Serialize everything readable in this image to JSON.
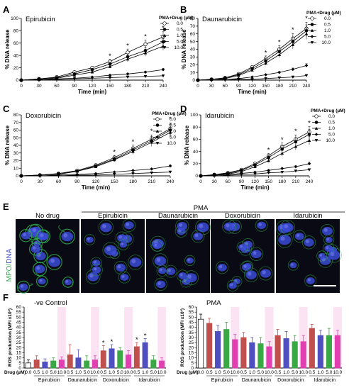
{
  "panel_labels": {
    "A": "A",
    "B": "B",
    "C": "C",
    "D": "D",
    "E": "E",
    "F": "F"
  },
  "chart_data": [
    {
      "id": "A",
      "type": "line",
      "title": "Epirubicin",
      "xlabel": "Time (min)",
      "ylabel": "% DNA release",
      "x": [
        0,
        30,
        60,
        90,
        120,
        150,
        180,
        210,
        240
      ],
      "xlim": [
        0,
        240
      ],
      "ylim": [
        0,
        100
      ],
      "yticks": [
        0,
        20,
        40,
        60,
        80,
        100
      ],
      "legend_title": "PMA+Drug (µM)",
      "series": [
        {
          "name": "0.0",
          "marker": "circle-open",
          "values": [
            0,
            2,
            5,
            13,
            20,
            30,
            45,
            58,
            70
          ]
        },
        {
          "name": "0.5",
          "marker": "circle-filled",
          "values": [
            0,
            2,
            4,
            10,
            17,
            26,
            38,
            48,
            62
          ]
        },
        {
          "name": "1.0",
          "marker": "triangle",
          "values": [
            0,
            1,
            3,
            8,
            13,
            22,
            34,
            44,
            55
          ]
        },
        {
          "name": "5.0",
          "marker": "diamond",
          "values": [
            0,
            1,
            2,
            3,
            5,
            8,
            10,
            13,
            17
          ]
        },
        {
          "name": "10.0",
          "marker": "triangle-down",
          "values": [
            0,
            0,
            1,
            2,
            3,
            4,
            5,
            6,
            7
          ]
        }
      ],
      "significance": [
        150,
        180,
        210,
        240
      ]
    },
    {
      "id": "B",
      "type": "line",
      "title": "Daunarubicin",
      "xlabel": "Time (min)",
      "ylabel": "% DNA release",
      "x": [
        0,
        30,
        60,
        90,
        120,
        150,
        180,
        210,
        240
      ],
      "xlim": [
        0,
        240
      ],
      "ylim": [
        0,
        80
      ],
      "yticks": [
        0,
        10,
        20,
        30,
        40,
        50,
        60,
        70,
        80
      ],
      "legend_title": "PMA+Drug (µM)",
      "series": [
        {
          "name": "0.0",
          "marker": "circle-open",
          "values": [
            0,
            1,
            3,
            8,
            17,
            28,
            40,
            54,
            67
          ]
        },
        {
          "name": "0.5",
          "marker": "circle-filled",
          "values": [
            0,
            1,
            3,
            7,
            15,
            25,
            37,
            50,
            64
          ]
        },
        {
          "name": "1.0",
          "marker": "triangle",
          "values": [
            0,
            1,
            2,
            6,
            13,
            22,
            33,
            46,
            60
          ]
        },
        {
          "name": "5.0",
          "marker": "diamond",
          "values": [
            0,
            0,
            1,
            2,
            4,
            7,
            10,
            14,
            19
          ]
        },
        {
          "name": "10.0",
          "marker": "triangle-down",
          "values": [
            0,
            0,
            0,
            1,
            1,
            2,
            3,
            4,
            6
          ]
        }
      ],
      "significance": [
        150,
        180,
        210,
        240
      ]
    },
    {
      "id": "C",
      "type": "line",
      "title": "Doxorubicin",
      "xlabel": "Time (min)",
      "ylabel": "% DNA release",
      "x": [
        0,
        30,
        60,
        90,
        120,
        150,
        180,
        210,
        240
      ],
      "xlim": [
        0,
        240
      ],
      "ylim": [
        0,
        80
      ],
      "yticks": [
        0,
        10,
        20,
        30,
        40,
        50,
        60,
        70,
        80
      ],
      "legend_title": "PMA+Drug (µM)",
      "series": [
        {
          "name": "0.0",
          "marker": "circle-open",
          "values": [
            0,
            1,
            3,
            7,
            14,
            24,
            36,
            48,
            62
          ]
        },
        {
          "name": "0.5",
          "marker": "circle-filled",
          "values": [
            0,
            1,
            3,
            6,
            13,
            22,
            34,
            46,
            60
          ]
        },
        {
          "name": "1.0",
          "marker": "triangle",
          "values": [
            0,
            1,
            2,
            6,
            12,
            21,
            32,
            44,
            57
          ]
        },
        {
          "name": "5.0",
          "marker": "diamond",
          "values": [
            0,
            0,
            1,
            2,
            3,
            5,
            7,
            9,
            13
          ]
        },
        {
          "name": "10.0",
          "marker": "triangle-down",
          "values": [
            0,
            0,
            0,
            1,
            1,
            2,
            3,
            4,
            5
          ]
        }
      ],
      "significance": [
        150,
        180,
        210,
        240
      ]
    },
    {
      "id": "D",
      "type": "line",
      "title": "Idarubicin",
      "xlabel": "Time (min)",
      "ylabel": "% DNA release",
      "x": [
        0,
        30,
        60,
        90,
        120,
        150,
        180,
        210,
        240
      ],
      "xlim": [
        0,
        240
      ],
      "ylim": [
        0,
        100
      ],
      "yticks": [
        0,
        20,
        40,
        60,
        80,
        100
      ],
      "legend_title": "PMA+Drug (µM)",
      "series": [
        {
          "name": "0.0",
          "marker": "circle-open",
          "values": [
            0,
            2,
            5,
            10,
            20,
            33,
            48,
            60,
            72
          ]
        },
        {
          "name": "0.5",
          "marker": "circle-filled",
          "values": [
            0,
            2,
            4,
            9,
            18,
            30,
            44,
            56,
            68
          ]
        },
        {
          "name": "1.0",
          "marker": "triangle",
          "values": [
            0,
            1,
            3,
            7,
            15,
            25,
            37,
            48,
            58
          ]
        },
        {
          "name": "5.0",
          "marker": "diamond",
          "values": [
            0,
            1,
            2,
            4,
            6,
            9,
            12,
            15,
            20
          ]
        },
        {
          "name": "10.0",
          "marker": "triangle-down",
          "values": [
            0,
            0,
            1,
            2,
            3,
            5,
            6,
            8,
            10
          ]
        }
      ],
      "significance": [
        150,
        180,
        210,
        240
      ]
    },
    {
      "id": "F-left",
      "type": "bar",
      "title": "-ve Control",
      "ylabel": "ROS production (MFI x10³)",
      "ylim": [
        0,
        60
      ],
      "yticks": [
        0,
        5,
        10,
        15,
        20,
        25,
        30,
        35,
        40,
        45,
        50,
        55,
        60
      ],
      "xlabel_prefix": "Drug (µM)",
      "concentrations": [
        "0.0",
        "0.5",
        "1.0",
        "5.0",
        "10.0",
        "0.5",
        "1.0",
        "5.0",
        "10.0",
        "0.5",
        "1.0",
        "5.0",
        "10.0",
        "0.5",
        "1.0",
        "5.0",
        "10.0"
      ],
      "groups": [
        "Epirubicin",
        "Daunarubicin",
        "Doxorubicin",
        "Idarubicin"
      ],
      "values": [
        5,
        8,
        6,
        7,
        8,
        13,
        10,
        7,
        8,
        17,
        19,
        17,
        13,
        21,
        25,
        8,
        7
      ],
      "errors": [
        3,
        4,
        3,
        3,
        3,
        10,
        8,
        5,
        4,
        5,
        4,
        3,
        4,
        4,
        4,
        4,
        3
      ],
      "colors": [
        "#ffffff",
        "#c0504d",
        "#4f4fbf",
        "#3aa845",
        "#e040b0",
        "#c0504d",
        "#4f4fbf",
        "#3aa845",
        "#e040b0",
        "#c0504d",
        "#4f4fbf",
        "#3aa845",
        "#e040b0",
        "#c0504d",
        "#4f4fbf",
        "#3aa845",
        "#e040b0"
      ],
      "significance_index": [
        9,
        10,
        13,
        14
      ]
    },
    {
      "id": "F-right",
      "type": "bar",
      "title": "PMA",
      "ylabel": "ROS production (MFI x10³)",
      "ylim": [
        0,
        60
      ],
      "yticks": [
        0,
        5,
        10,
        15,
        20,
        25,
        30,
        35,
        40,
        45,
        50,
        55,
        60
      ],
      "xlabel_prefix": "Drug (µM)",
      "concentrations": [
        "0.0",
        "0.5",
        "1.0",
        "5.0",
        "10.0",
        "0.5",
        "1.0",
        "5.0",
        "10.0",
        "0.5",
        "1.0",
        "5.0",
        "10.0",
        "0.5",
        "1.0",
        "5.0",
        "10.0"
      ],
      "groups": [
        "Epirubicin",
        "Daunarubicin",
        "Doxorubicin",
        "Idarubicin"
      ],
      "values": [
        48,
        44,
        36,
        38,
        28,
        30,
        25,
        24,
        21,
        32,
        29,
        26,
        26,
        39,
        32,
        32,
        32
      ],
      "errors": [
        5,
        5,
        6,
        7,
        5,
        5,
        5,
        6,
        5,
        6,
        7,
        6,
        6,
        4,
        5,
        7,
        5
      ],
      "colors": [
        "#ffffff",
        "#c0504d",
        "#4f4fbf",
        "#3aa845",
        "#e040b0",
        "#c0504d",
        "#4f4fbf",
        "#3aa845",
        "#e040b0",
        "#c0504d",
        "#4f4fbf",
        "#3aa845",
        "#e040b0",
        "#c0504d",
        "#4f4fbf",
        "#3aa845",
        "#e040b0"
      ],
      "significance_index": []
    }
  ],
  "micrograph": {
    "header": "PMA",
    "conditions": [
      "No drug",
      "Epirubicin",
      "Daunarubicin",
      "Doxorubicin",
      "Idarubicin"
    ],
    "stain_label_mpo": "MPO/",
    "stain_label_dna": "DNA"
  },
  "significance_marker": "*",
  "colors": {
    "mpo": "#2fa84f",
    "dna": "#3b4bd6",
    "background": "#0a0a14"
  }
}
